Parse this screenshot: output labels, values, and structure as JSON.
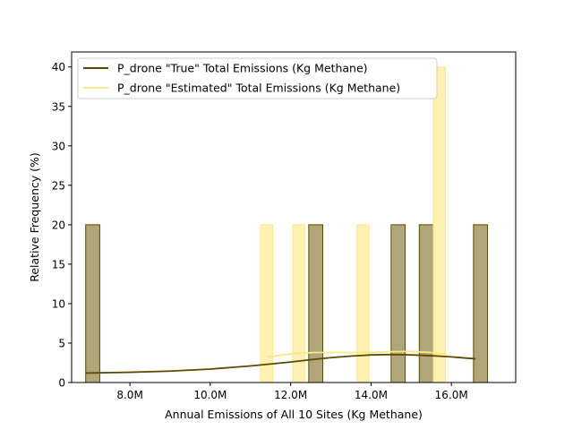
{
  "chart_data": {
    "type": "histogram",
    "xlabel": "Annual Emissions of All 10 Sites (Kg Methane)",
    "ylabel": "Relative Frequency (%)",
    "xlim": [
      6.55,
      17.6
    ],
    "ylim": [
      0,
      41.9
    ],
    "x_unit": "M Kg Methane",
    "x_ticks": [
      8.0,
      10.0,
      12.0,
      14.0,
      16.0
    ],
    "x_tick_labels": [
      "8.0M",
      "10.0M",
      "12.0M",
      "14.0M",
      "16.0M"
    ],
    "y_ticks": [
      0,
      5,
      10,
      15,
      20,
      25,
      30,
      35,
      40
    ],
    "y_tick_labels": [
      "0",
      "5",
      "10",
      "15",
      "20",
      "25",
      "30",
      "35",
      "40"
    ],
    "grid": false,
    "legend_position": "top-left",
    "series": [
      {
        "name": "P_drone \"True\" Total Emissions (Kg Methane)",
        "fill_color": "#b0a67a",
        "edge_color": "#5c4a00",
        "line_color": "#5c4a00",
        "bars": [
          {
            "x0": 6.9,
            "x1": 7.25,
            "value": 20
          },
          {
            "x0": 12.45,
            "x1": 12.8,
            "value": 20
          },
          {
            "x0": 14.5,
            "x1": 14.85,
            "value": 20
          },
          {
            "x0": 15.2,
            "x1": 15.55,
            "value": 20
          },
          {
            "x0": 16.55,
            "x1": 16.9,
            "value": 20
          }
        ],
        "kde": {
          "x": [
            6.9,
            8.0,
            9.0,
            10.0,
            11.0,
            12.0,
            12.5,
            13.0,
            13.5,
            14.0,
            14.5,
            15.0,
            15.5,
            16.0,
            16.6
          ],
          "y": [
            1.2,
            1.3,
            1.45,
            1.7,
            2.1,
            2.6,
            2.9,
            3.15,
            3.35,
            3.5,
            3.55,
            3.5,
            3.4,
            3.25,
            3.0
          ]
        }
      },
      {
        "name": "P_drone \"Estimated\" Total Emissions (Kg Methane)",
        "fill_color": "#fff1b3",
        "edge_color": "#ffe680",
        "line_color": "#ffe680",
        "bars": [
          {
            "x0": 11.25,
            "x1": 11.55,
            "value": 20
          },
          {
            "x0": 12.05,
            "x1": 12.35,
            "value": 20
          },
          {
            "x0": 13.65,
            "x1": 13.95,
            "value": 20
          },
          {
            "x0": 15.55,
            "x1": 15.85,
            "value": 40
          }
        ],
        "kde": {
          "x": [
            11.4,
            11.8,
            12.2,
            12.6,
            13.0,
            13.5,
            14.0,
            14.5,
            15.0,
            15.5,
            15.9
          ],
          "y": [
            3.2,
            3.5,
            3.7,
            3.8,
            3.8,
            3.8,
            3.85,
            3.9,
            3.95,
            3.8,
            3.55
          ]
        }
      }
    ]
  }
}
